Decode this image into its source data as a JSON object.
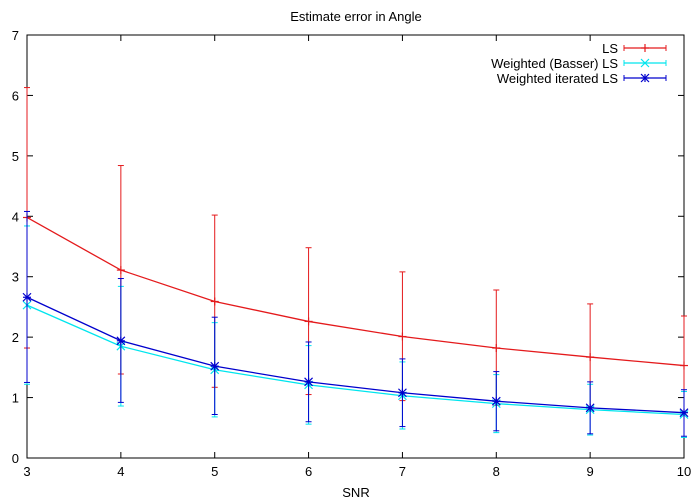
{
  "chart_data": {
    "type": "line",
    "title": "Estimate error in Angle",
    "xlabel": "SNR",
    "ylabel": "",
    "xlim": [
      3,
      10
    ],
    "ylim": [
      0,
      7
    ],
    "x_ticks": [
      "3",
      "4",
      "5",
      "6",
      "7",
      "8",
      "9",
      "10"
    ],
    "y_ticks": [
      "0",
      "1",
      "2",
      "3",
      "4",
      "5",
      "6",
      "7"
    ],
    "grid": false,
    "legend_position": "top-right",
    "x": [
      3,
      4,
      5,
      6,
      7,
      8,
      9,
      10
    ],
    "series": [
      {
        "name": "LS",
        "color": "#e41a1c",
        "marker": "plus",
        "values": [
          3.98,
          3.11,
          2.59,
          2.26,
          2.01,
          1.82,
          1.67,
          1.53
        ],
        "err_low": [
          1.82,
          1.39,
          1.17,
          1.05,
          0.95,
          0.87,
          0.8,
          0.75
        ],
        "err_high": [
          6.13,
          4.84,
          4.02,
          3.48,
          3.08,
          2.78,
          2.55,
          2.35
        ]
      },
      {
        "name": "Weighted (Basser) LS",
        "color": "#00e5ee",
        "marker": "cross",
        "values": [
          2.53,
          1.85,
          1.46,
          1.21,
          1.03,
          0.9,
          0.8,
          0.72
        ],
        "err_low": [
          1.22,
          0.86,
          0.68,
          0.56,
          0.48,
          0.42,
          0.38,
          0.34
        ],
        "err_high": [
          3.84,
          2.84,
          2.24,
          1.86,
          1.59,
          1.38,
          1.22,
          1.1
        ]
      },
      {
        "name": "Weighted iterated LS",
        "color": "#0000cd",
        "marker": "star",
        "values": [
          2.66,
          1.94,
          1.52,
          1.26,
          1.08,
          0.94,
          0.83,
          0.75
        ],
        "err_low": [
          1.25,
          0.92,
          0.72,
          0.6,
          0.52,
          0.45,
          0.4,
          0.36
        ],
        "err_high": [
          4.08,
          2.97,
          2.33,
          1.92,
          1.64,
          1.43,
          1.26,
          1.13
        ]
      }
    ]
  }
}
